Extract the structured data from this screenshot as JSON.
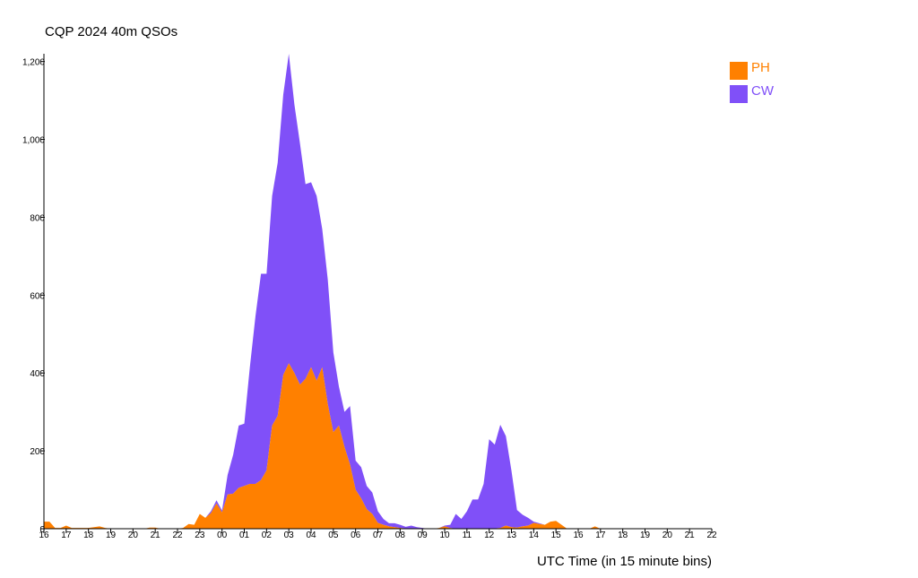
{
  "chart_data": {
    "type": "area",
    "stacked": true,
    "title": "CQP 2024 40m QSOs",
    "xlabel": "UTC Time (in 15 minute bins)",
    "ylabel": "",
    "ylim": [
      0,
      1220
    ],
    "x_ticks": [
      "16",
      "17",
      "18",
      "19",
      "20",
      "21",
      "22",
      "23",
      "00",
      "01",
      "02",
      "03",
      "04",
      "05",
      "06",
      "07",
      "08",
      "09",
      "10",
      "11",
      "12",
      "13",
      "14",
      "15",
      "16",
      "17",
      "18",
      "19",
      "20",
      "21",
      "22"
    ],
    "y_ticks": [
      "0",
      "200",
      "400",
      "600",
      "800",
      "1,000",
      "1,200"
    ],
    "y_tick_values": [
      0,
      200,
      400,
      600,
      800,
      1000,
      1200
    ],
    "legend_position": "top-right",
    "grid": false,
    "colors": {
      "PH": "#ff8000",
      "CW": "#8050f8"
    },
    "series": [
      {
        "name": "PH",
        "color": "#ff8000",
        "points": [
          [
            16.0,
            18
          ],
          [
            16.25,
            18
          ],
          [
            16.5,
            2
          ],
          [
            16.75,
            2
          ],
          [
            17.0,
            8
          ],
          [
            17.25,
            2
          ],
          [
            17.5,
            2
          ],
          [
            17.75,
            2
          ],
          [
            18.0,
            2
          ],
          [
            18.25,
            4
          ],
          [
            18.5,
            6
          ],
          [
            18.75,
            2
          ],
          [
            19.0,
            0
          ],
          [
            19.5,
            0
          ],
          [
            20.0,
            0
          ],
          [
            20.5,
            0
          ],
          [
            20.75,
            3
          ],
          [
            21.0,
            3
          ],
          [
            21.25,
            0
          ],
          [
            22.0,
            0
          ],
          [
            22.25,
            2
          ],
          [
            22.5,
            12
          ],
          [
            22.75,
            10
          ],
          [
            23.0,
            38
          ],
          [
            23.25,
            28
          ],
          [
            23.5,
            40
          ],
          [
            23.75,
            65
          ],
          [
            24.0,
            42
          ],
          [
            24.25,
            88
          ],
          [
            24.5,
            90
          ],
          [
            24.75,
            105
          ],
          [
            25.0,
            110
          ],
          [
            25.25,
            115
          ],
          [
            25.5,
            115
          ],
          [
            25.75,
            125
          ],
          [
            26.0,
            150
          ],
          [
            26.25,
            265
          ],
          [
            26.5,
            290
          ],
          [
            26.75,
            395
          ],
          [
            27.0,
            425
          ],
          [
            27.25,
            400
          ],
          [
            27.5,
            370
          ],
          [
            27.75,
            385
          ],
          [
            28.0,
            415
          ],
          [
            28.25,
            380
          ],
          [
            28.5,
            415
          ],
          [
            28.75,
            320
          ],
          [
            29.0,
            248
          ],
          [
            29.25,
            265
          ],
          [
            29.5,
            210
          ],
          [
            29.75,
            165
          ],
          [
            30.0,
            100
          ],
          [
            30.25,
            78
          ],
          [
            30.5,
            50
          ],
          [
            30.75,
            38
          ],
          [
            31.0,
            15
          ],
          [
            31.25,
            10
          ],
          [
            31.5,
            6
          ],
          [
            31.75,
            4
          ],
          [
            32.0,
            2
          ],
          [
            32.5,
            0
          ],
          [
            33.0,
            0
          ],
          [
            33.5,
            0
          ],
          [
            33.75,
            2
          ],
          [
            34.0,
            6
          ],
          [
            34.25,
            2
          ],
          [
            34.5,
            0
          ],
          [
            35.0,
            0
          ],
          [
            35.5,
            0
          ],
          [
            36.0,
            0
          ],
          [
            36.5,
            2
          ],
          [
            36.75,
            8
          ],
          [
            37.0,
            4
          ],
          [
            37.25,
            3
          ],
          [
            37.5,
            6
          ],
          [
            37.75,
            8
          ],
          [
            38.0,
            15
          ],
          [
            38.25,
            12
          ],
          [
            38.5,
            10
          ],
          [
            38.75,
            18
          ],
          [
            39.0,
            20
          ],
          [
            39.25,
            10
          ],
          [
            39.5,
            0
          ],
          [
            40.0,
            0
          ],
          [
            40.5,
            0
          ],
          [
            40.75,
            6
          ],
          [
            41.0,
            0
          ],
          [
            46.0,
            0
          ]
        ]
      },
      {
        "name": "CW",
        "color": "#8050f8",
        "points": [
          [
            16.0,
            0
          ],
          [
            23.25,
            0
          ],
          [
            23.5,
            5
          ],
          [
            23.75,
            8
          ],
          [
            24.0,
            5
          ],
          [
            24.25,
            50
          ],
          [
            24.5,
            100
          ],
          [
            24.75,
            160
          ],
          [
            25.0,
            160
          ],
          [
            25.25,
            300
          ],
          [
            25.5,
            430
          ],
          [
            25.75,
            530
          ],
          [
            26.0,
            505
          ],
          [
            26.25,
            590
          ],
          [
            26.5,
            650
          ],
          [
            26.75,
            720
          ],
          [
            27.0,
            795
          ],
          [
            27.25,
            690
          ],
          [
            27.5,
            620
          ],
          [
            27.75,
            500
          ],
          [
            28.0,
            475
          ],
          [
            28.25,
            475
          ],
          [
            28.5,
            355
          ],
          [
            28.75,
            320
          ],
          [
            29.0,
            205
          ],
          [
            29.25,
            100
          ],
          [
            29.5,
            90
          ],
          [
            29.75,
            150
          ],
          [
            30.0,
            75
          ],
          [
            30.25,
            80
          ],
          [
            30.5,
            60
          ],
          [
            30.75,
            55
          ],
          [
            31.0,
            30
          ],
          [
            31.25,
            15
          ],
          [
            31.5,
            8
          ],
          [
            31.75,
            10
          ],
          [
            32.0,
            8
          ],
          [
            32.25,
            4
          ],
          [
            32.5,
            8
          ],
          [
            32.75,
            4
          ],
          [
            33.0,
            2
          ],
          [
            33.25,
            0
          ],
          [
            33.5,
            0
          ],
          [
            33.75,
            0
          ],
          [
            34.0,
            2
          ],
          [
            34.25,
            8
          ],
          [
            34.5,
            38
          ],
          [
            34.75,
            25
          ],
          [
            35.0,
            45
          ],
          [
            35.25,
            75
          ],
          [
            35.5,
            75
          ],
          [
            35.75,
            115
          ],
          [
            36.0,
            230
          ],
          [
            36.25,
            215
          ],
          [
            36.5,
            265
          ],
          [
            36.75,
            230
          ],
          [
            37.0,
            145
          ],
          [
            37.25,
            45
          ],
          [
            37.5,
            30
          ],
          [
            37.75,
            20
          ],
          [
            38.0,
            3
          ],
          [
            38.25,
            2
          ],
          [
            38.5,
            0
          ],
          [
            46.0,
            0
          ]
        ]
      }
    ]
  }
}
